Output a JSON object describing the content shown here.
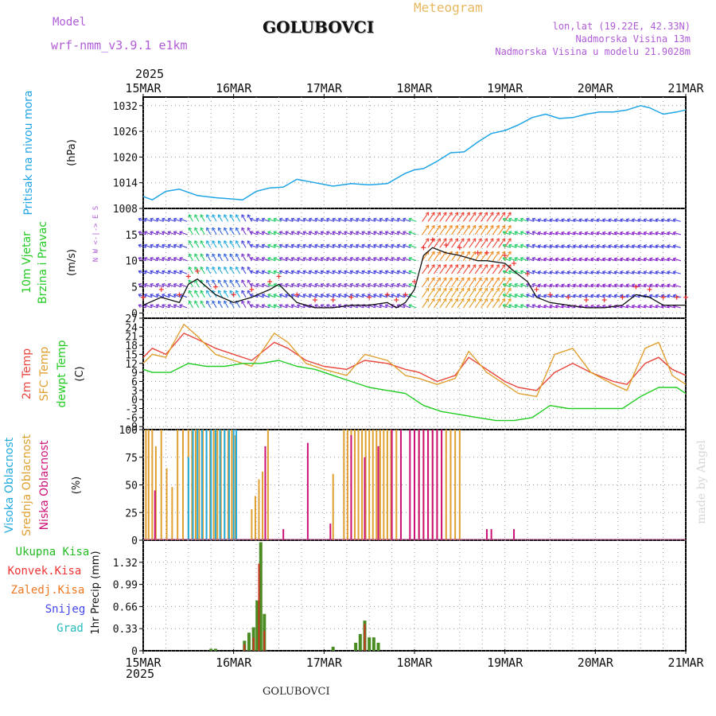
{
  "header": {
    "model_label": "Model",
    "model_name": "wrf-nmm_v3.9.1 e1km",
    "station": "GOLUBOVCI",
    "meteogram": "Meteogram",
    "lonlat": "lon,lat (19.22E, 42.33N)",
    "elevation": "Nadmorska Visina 13m",
    "model_elevation": "Nadmorska Visina u modelu 21.9028m",
    "year": "2025",
    "footer_station": "GOLUBOVCI",
    "watermark": "made by Angel"
  },
  "colors": {
    "pressure": "#1fa4e6",
    "temp2m": "#e8463c",
    "sfc": "#e0a030",
    "dewpt": "#22cc22",
    "high_cloud": "#22aadd",
    "mid_cloud": "#e0a030",
    "low_cloud": "#cc1177",
    "total_precip": "#22bb22",
    "conv_precip": "#ee3333",
    "frozen": "#ee7722",
    "snow": "#4444ee",
    "grad": "#22bbbb",
    "model_text": "#b05cd8",
    "meteogram_text": "#e8b860"
  },
  "chart_data": {
    "type": "line",
    "x_ticks": [
      "15MAR",
      "16MAR",
      "17MAR",
      "18MAR",
      "19MAR",
      "20MAR",
      "21MAR"
    ],
    "x_range_days": [
      15,
      21
    ],
    "panels": {
      "pressure": {
        "ylabel_colored": "Pritisak na nivou mora",
        "unit": "(hPa)",
        "yticks": [
          1008,
          1014,
          1020,
          1026,
          1032
        ],
        "ylim": [
          1008,
          1034
        ],
        "x": [
          15.0,
          15.1,
          15.25,
          15.4,
          15.6,
          15.8,
          16.0,
          16.1,
          16.25,
          16.4,
          16.55,
          16.7,
          16.9,
          17.1,
          17.3,
          17.5,
          17.7,
          17.9,
          18.0,
          18.1,
          18.25,
          18.4,
          18.55,
          18.7,
          18.85,
          19.0,
          19.15,
          19.3,
          19.45,
          19.6,
          19.75,
          19.9,
          20.05,
          20.2,
          20.35,
          20.5,
          20.6,
          20.75,
          20.9,
          21.0
        ],
        "values": [
          1010.8,
          1010.0,
          1012.0,
          1012.5,
          1011.0,
          1010.5,
          1010.2,
          1010.0,
          1012.0,
          1012.8,
          1013.0,
          1014.8,
          1014.0,
          1013.2,
          1013.8,
          1013.5,
          1013.8,
          1016.2,
          1017.0,
          1017.3,
          1019.0,
          1021.0,
          1021.2,
          1023.5,
          1025.5,
          1026.2,
          1027.5,
          1029.2,
          1030.0,
          1029.0,
          1029.2,
          1030.0,
          1030.5,
          1030.5,
          1031.0,
          1032.0,
          1031.5,
          1030.0,
          1030.5,
          1031.0
        ]
      },
      "wind": {
        "ylabel_colored": [
          "10m Vjetar",
          "Brzina i Pravac"
        ],
        "unit": "(m/s)",
        "yticks": [
          0,
          5,
          10,
          15
        ],
        "ylim": [
          -1,
          20
        ],
        "compass": "N W <-|-> E S",
        "x": [
          15.0,
          15.2,
          15.4,
          15.5,
          15.6,
          15.8,
          16.0,
          16.2,
          16.4,
          16.5,
          16.7,
          16.9,
          17.1,
          17.3,
          17.5,
          17.7,
          17.8,
          17.9,
          18.0,
          18.1,
          18.2,
          18.35,
          18.5,
          18.7,
          18.8,
          19.0,
          19.1,
          19.25,
          19.35,
          19.5,
          19.7,
          19.9,
          20.1,
          20.3,
          20.45,
          20.6,
          20.75,
          20.9,
          21.0
        ],
        "values": [
          1.5,
          3.0,
          2.0,
          5.5,
          6.5,
          3.5,
          2.0,
          3.0,
          4.5,
          5.5,
          2.0,
          1.0,
          1.0,
          1.5,
          1.5,
          2.0,
          1.0,
          2.0,
          4.5,
          11.0,
          12.5,
          11.5,
          11.0,
          10.0,
          10.0,
          9.5,
          8.0,
          6.0,
          3.0,
          2.0,
          1.5,
          1.0,
          1.0,
          1.5,
          3.5,
          3.0,
          1.5,
          1.5,
          1.5
        ]
      },
      "temperature": {
        "ylabel_colored": [
          "2m Temp",
          "SFC Temp",
          "dewpt Temp"
        ],
        "unit": "(C)",
        "yticks": [
          -9,
          -6,
          -3,
          0,
          3,
          6,
          9,
          12,
          15,
          18,
          21,
          24,
          27
        ],
        "ylim": [
          -10,
          27
        ],
        "series": [
          {
            "name": "2m Temp",
            "x": [
              15.0,
              15.1,
              15.25,
              15.45,
              15.6,
              15.8,
              16.0,
              16.2,
              16.45,
              16.6,
              16.8,
              17.0,
              17.25,
              17.45,
              17.7,
              17.9,
              18.05,
              18.25,
              18.45,
              18.6,
              18.8,
              19.0,
              19.15,
              19.35,
              19.55,
              19.75,
              19.95,
              20.2,
              20.35,
              20.55,
              20.7,
              20.85,
              21.0
            ],
            "values": [
              14,
              17,
              15,
              22,
              20,
              17,
              15,
              13,
              19,
              17,
              13,
              11,
              10,
              13,
              12,
              10,
              9,
              6,
              8,
              14,
              10,
              6,
              4,
              3,
              9,
              12,
              9,
              6,
              5,
              12,
              14,
              10,
              8
            ]
          },
          {
            "name": "SFC Temp",
            "x": [
              15.0,
              15.1,
              15.25,
              15.45,
              15.6,
              15.8,
              16.0,
              16.2,
              16.45,
              16.6,
              16.8,
              17.0,
              17.25,
              17.45,
              17.7,
              17.9,
              18.05,
              18.25,
              18.45,
              18.6,
              18.8,
              19.0,
              19.15,
              19.35,
              19.55,
              19.75,
              19.95,
              20.2,
              20.35,
              20.55,
              20.7,
              20.85,
              21.0
            ],
            "values": [
              12,
              15,
              14,
              25,
              21,
              15,
              13,
              11,
              22,
              19,
              12,
              10,
              8,
              15,
              13,
              8,
              7,
              5,
              7,
              16,
              9,
              5,
              2,
              1,
              15,
              17,
              9,
              5,
              3,
              17,
              19,
              8,
              5
            ]
          },
          {
            "name": "dewpt Temp",
            "x": [
              15.0,
              15.1,
              15.3,
              15.5,
              15.7,
              15.9,
              16.1,
              16.3,
              16.5,
              16.7,
              16.9,
              17.1,
              17.3,
              17.5,
              17.7,
              17.9,
              18.1,
              18.3,
              18.5,
              18.7,
              18.9,
              19.1,
              19.3,
              19.5,
              19.7,
              19.9,
              20.1,
              20.3,
              20.5,
              20.7,
              20.9,
              21.0
            ],
            "values": [
              10,
              9,
              9,
              12,
              11,
              11,
              12,
              12,
              13,
              11,
              10,
              8,
              6,
              4,
              3,
              2,
              -2,
              -4,
              -5,
              -6,
              -7,
              -7,
              -6,
              -2,
              -3,
              -3,
              -3,
              -3,
              1,
              4,
              4,
              2
            ]
          }
        ]
      },
      "clouds": {
        "ylabel_colored": [
          "Visoka Oblacnost",
          "Srednja Oblacnost",
          "Niska Oblacnost"
        ],
        "unit": "(%)",
        "yticks": [
          0,
          25,
          50,
          75,
          100
        ],
        "ylim": [
          0,
          100
        ],
        "series": [
          {
            "name": "Srednja Oblacnost",
            "x": [
              15.03,
              15.06,
              15.1,
              15.14,
              15.2,
              15.26,
              15.32,
              15.38,
              15.44,
              15.5,
              15.54,
              15.58,
              15.62,
              15.66,
              15.7,
              15.74,
              15.78,
              15.82,
              15.86,
              15.9,
              15.94,
              15.98,
              16.02,
              16.2,
              16.24,
              16.28,
              16.32,
              16.38,
              17.1,
              17.22,
              17.26,
              17.3,
              17.34,
              17.38,
              17.42,
              17.46,
              17.5,
              17.54,
              17.58,
              17.62,
              17.66,
              17.7,
              17.74,
              17.8,
              18.0,
              18.05,
              18.1,
              18.15,
              18.2,
              18.25,
              18.3,
              18.35,
              18.4,
              18.45,
              18.5
            ],
            "values": [
              100,
              100,
              100,
              85,
              100,
              65,
              48,
              100,
              100,
              100,
              100,
              100,
              100,
              100,
              100,
              100,
              100,
              100,
              100,
              100,
              100,
              100,
              95,
              28,
              40,
              55,
              62,
              100,
              60,
              100,
              100,
              100,
              100,
              100,
              100,
              100,
              100,
              100,
              100,
              100,
              100,
              100,
              100,
              100,
              100,
              100,
              100,
              100,
              100,
              100,
              100,
              100,
              100,
              100,
              100
            ]
          },
          {
            "name": "Visoka Oblacnost",
            "x": [
              15.5,
              15.55,
              15.6,
              15.65,
              15.7,
              15.75,
              15.8,
              15.85,
              15.9,
              15.95,
              16.0,
              16.03
            ],
            "values": [
              75,
              100,
              100,
              100,
              100,
              100,
              100,
              100,
              100,
              100,
              100,
              100
            ]
          },
          {
            "name": "Niska Oblacnost",
            "x": [
              15.13,
              16.35,
              16.55,
              16.82,
              17.07,
              17.3,
              17.45,
              17.6,
              17.75,
              17.85,
              17.95,
              18.0,
              18.05,
              18.1,
              18.15,
              18.2,
              18.25,
              18.3,
              18.8,
              18.85,
              19.1
            ],
            "values": [
              45,
              85,
              10,
              88,
              15,
              95,
              75,
              85,
              100,
              100,
              100,
              100,
              100,
              100,
              100,
              100,
              100,
              100,
              10,
              10,
              10
            ]
          }
        ]
      },
      "precip": {
        "ylabel_colored": [
          "Ukupna Kisa",
          "Konvek.Kisa",
          "Zaledj.Kisa",
          "Snijeg",
          "Grad"
        ],
        "unit": "1hr Precip (mm)",
        "yticks": [
          0,
          0.33,
          0.66,
          0.99,
          1.32
        ],
        "ylim": [
          0,
          1.65
        ],
        "series": [
          {
            "name": "Ukupna Kisa",
            "x": [
              15.75,
              15.8,
              16.12,
              16.17,
              16.22,
              16.26,
              16.3,
              16.34,
              17.1,
              17.35,
              17.4,
              17.45,
              17.5,
              17.55,
              17.6
            ],
            "values": [
              0.03,
              0.03,
              0.15,
              0.27,
              0.35,
              0.75,
              1.62,
              0.55,
              0.06,
              0.12,
              0.25,
              0.45,
              0.2,
              0.2,
              0.12
            ]
          },
          {
            "name": "Konvek.Kisa",
            "x": [
              16.12,
              16.22,
              16.28,
              16.34,
              17.45
            ],
            "values": [
              0.1,
              0.2,
              1.3,
              0.3,
              0.4
            ]
          }
        ]
      }
    }
  }
}
